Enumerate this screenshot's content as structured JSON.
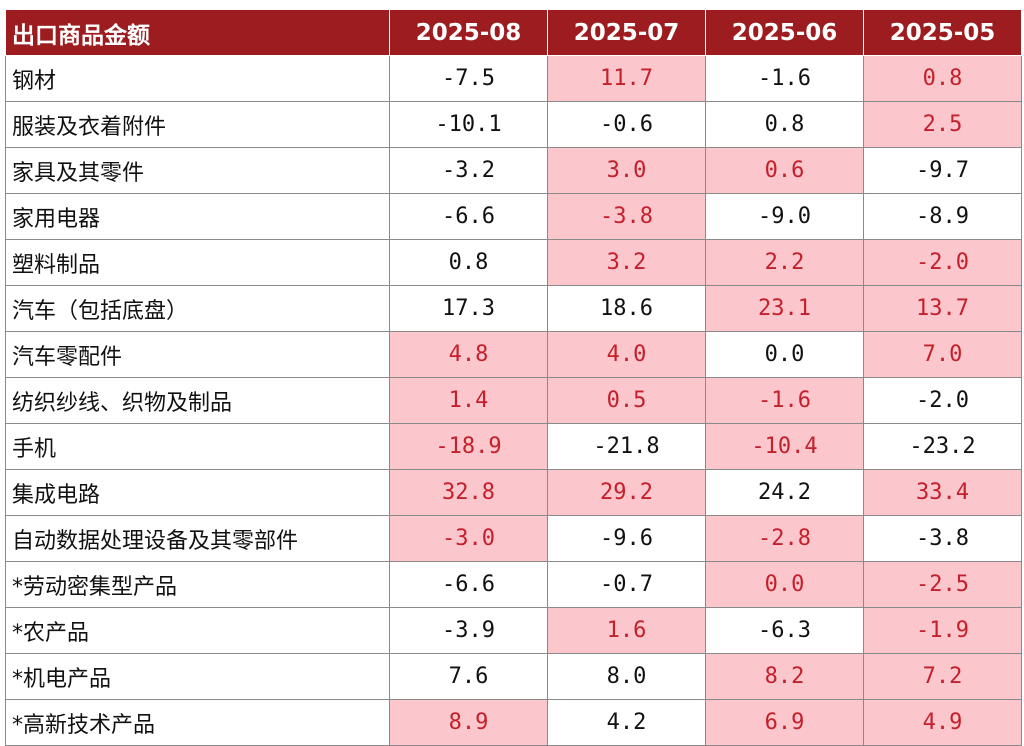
{
  "colors": {
    "header_bg": "#9c1c1f",
    "highlight_bg": "#fbc6cc",
    "highlight_text": "#c4202b"
  },
  "header": {
    "label": "出口商品金额",
    "periods": [
      "2025-08",
      "2025-07",
      "2025-06",
      "2025-05"
    ]
  },
  "rows": [
    {
      "name": "钢材",
      "values": [
        "-7.5",
        "11.7",
        "-1.6",
        "0.8"
      ],
      "highlight": [
        false,
        true,
        false,
        true
      ]
    },
    {
      "name": "服装及衣着附件",
      "values": [
        "-10.1",
        "-0.6",
        "0.8",
        "2.5"
      ],
      "highlight": [
        false,
        false,
        false,
        true
      ]
    },
    {
      "name": "家具及其零件",
      "values": [
        "-3.2",
        "3.0",
        "0.6",
        "-9.7"
      ],
      "highlight": [
        false,
        true,
        true,
        false
      ]
    },
    {
      "name": "家用电器",
      "values": [
        "-6.6",
        "-3.8",
        "-9.0",
        "-8.9"
      ],
      "highlight": [
        false,
        true,
        false,
        false
      ]
    },
    {
      "name": "塑料制品",
      "values": [
        "0.8",
        "3.2",
        "2.2",
        "-2.0"
      ],
      "highlight": [
        false,
        true,
        true,
        true
      ]
    },
    {
      "name": "汽车（包括底盘）",
      "values": [
        "17.3",
        "18.6",
        "23.1",
        "13.7"
      ],
      "highlight": [
        false,
        false,
        true,
        true
      ]
    },
    {
      "name": "汽车零配件",
      "values": [
        "4.8",
        "4.0",
        "0.0",
        "7.0"
      ],
      "highlight": [
        true,
        true,
        false,
        true
      ]
    },
    {
      "name": "纺织纱线、织物及制品",
      "values": [
        "1.4",
        "0.5",
        "-1.6",
        "-2.0"
      ],
      "highlight": [
        true,
        true,
        true,
        false
      ]
    },
    {
      "name": "手机",
      "values": [
        "-18.9",
        "-21.8",
        "-10.4",
        "-23.2"
      ],
      "highlight": [
        true,
        false,
        true,
        false
      ]
    },
    {
      "name": "集成电路",
      "values": [
        "32.8",
        "29.2",
        "24.2",
        "33.4"
      ],
      "highlight": [
        true,
        true,
        false,
        true
      ]
    },
    {
      "name": "自动数据处理设备及其零部件",
      "values": [
        "-3.0",
        "-9.6",
        "-2.8",
        "-3.8"
      ],
      "highlight": [
        true,
        false,
        true,
        false
      ]
    },
    {
      "name": "*劳动密集型产品",
      "values": [
        "-6.6",
        "-0.7",
        "0.0",
        "-2.5"
      ],
      "highlight": [
        false,
        false,
        true,
        true
      ]
    },
    {
      "name": "*农产品",
      "values": [
        "-3.9",
        "1.6",
        "-6.3",
        "-1.9"
      ],
      "highlight": [
        false,
        true,
        false,
        true
      ]
    },
    {
      "name": "*机电产品",
      "values": [
        "7.6",
        "8.0",
        "8.2",
        "7.2"
      ],
      "highlight": [
        false,
        false,
        true,
        true
      ]
    },
    {
      "name": "*高新技术产品",
      "values": [
        "8.9",
        "4.2",
        "6.9",
        "4.9"
      ],
      "highlight": [
        true,
        false,
        true,
        true
      ]
    }
  ]
}
